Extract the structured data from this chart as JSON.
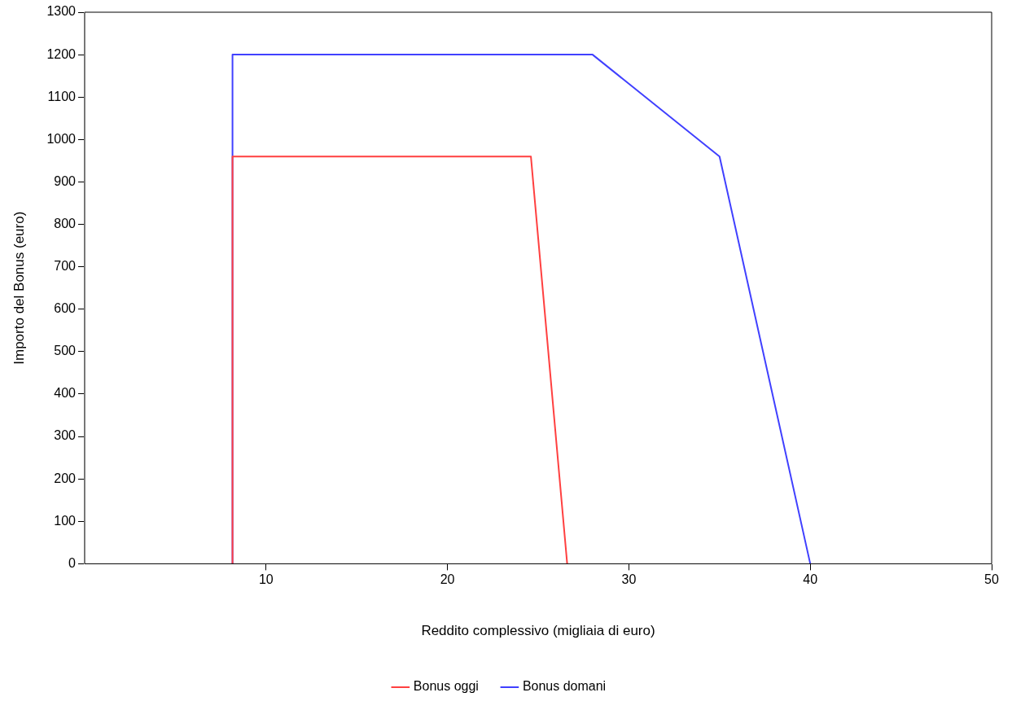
{
  "chart_data": {
    "type": "line",
    "xlabel": "Reddito complessivo (migliaia di euro)",
    "ylabel": "Importo del Bonus (euro)",
    "xlim": [
      0,
      50
    ],
    "xticks": [
      10,
      20,
      30,
      40,
      50
    ],
    "ylim": [
      0,
      1300
    ],
    "yticks": [
      0,
      100,
      200,
      300,
      400,
      500,
      600,
      700,
      800,
      900,
      1000,
      1100,
      1200,
      1300
    ],
    "grid": false,
    "legend": "bottom",
    "marker": "none",
    "line_style": "solid",
    "series": [
      {
        "name": "Bonus oggi",
        "color": "#ff4040",
        "x": [
          8.15,
          8.15,
          24.6,
          26.6
        ],
        "values": [
          0,
          960,
          960,
          0
        ]
      },
      {
        "name": "Bonus domani",
        "color": "#4040ff",
        "x": [
          8.15,
          8.15,
          28,
          35,
          40
        ],
        "values": [
          0,
          1200,
          1200,
          960,
          0
        ]
      }
    ]
  }
}
